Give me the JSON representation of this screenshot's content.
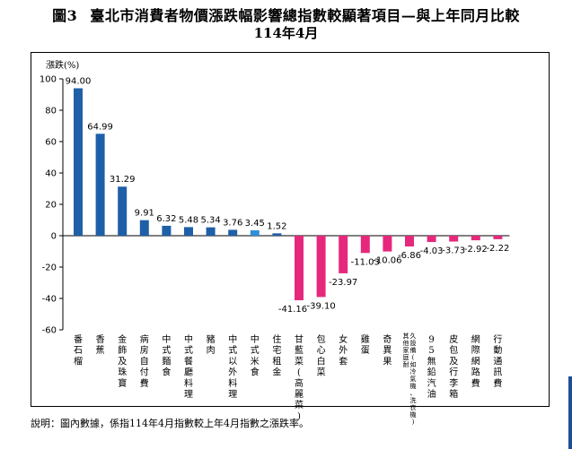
{
  "title": {
    "figure_no": "圖3",
    "text": "臺北市消費者物價漲跌幅影響總指數較顯著項目—與上年同月比較",
    "period": "114年4月"
  },
  "note": "說明：圖內數據，係指114年4月指數較上年4月指數之漲跌率。",
  "colors": {
    "positive": "#1f5fa8",
    "positive_highlight": "#2f8fd8",
    "negative": "#e6287c"
  },
  "chart_data": {
    "type": "bar",
    "ylabel": "漲跌(%)",
    "ylim": [
      -60,
      100
    ],
    "yticks": [
      100,
      80,
      60,
      40,
      20,
      0,
      -20,
      -40,
      -60
    ],
    "grid": false,
    "categories": [
      "番石榴",
      "香蕉",
      "金飾及珠寶",
      "病房自付費",
      "中式麵食",
      "中式餐廳料理",
      "豬肉",
      "中式以外料理",
      "中式米食",
      "住宅租金",
      "甘藍菜(高麗菜)",
      "包心白菜",
      "女外套",
      "雞蛋",
      "奇異果",
      "其他家庭耐久設備(如冷氣機、洗衣機)",
      "95無鉛汽油",
      "皮包及行李箱",
      "網際網路費",
      "行動通訊費"
    ],
    "values": [
      94.0,
      64.99,
      31.29,
      9.91,
      6.32,
      5.48,
      5.34,
      3.76,
      3.45,
      1.52,
      -41.16,
      -39.1,
      -23.97,
      -11.03,
      -10.06,
      -6.86,
      -4.03,
      -3.73,
      -2.92,
      -2.22
    ],
    "value_labels": [
      "94.00",
      "64.99",
      "31.29",
      "9.91",
      "6.32",
      "5.48",
      "5.34",
      "3.76",
      "3.45",
      "1.52",
      "-41.16",
      "-39.10",
      "-23.97",
      "-11.03",
      "-10.06",
      "-6.86",
      "-4.03",
      "-3.73",
      "-2.92",
      "-2.22"
    ],
    "highlight_index": 8
  }
}
